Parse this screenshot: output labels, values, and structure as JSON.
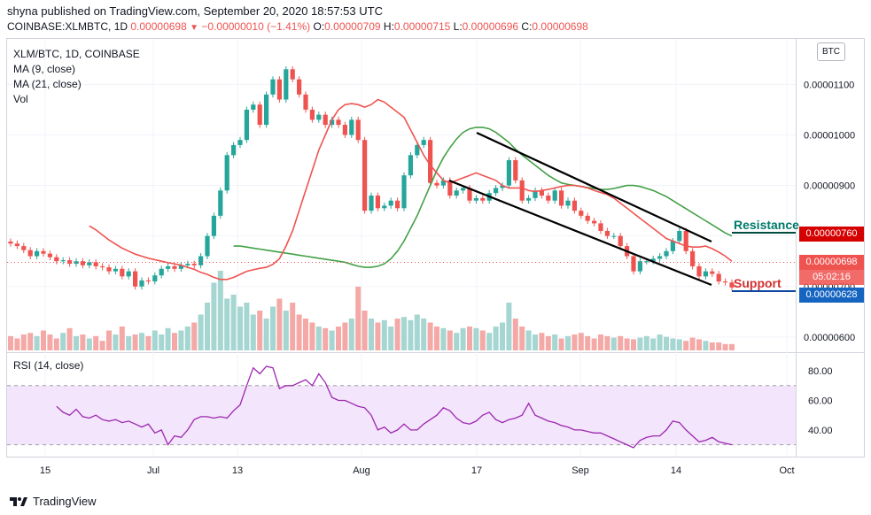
{
  "header": {
    "published": "shyna published on TradingView.com, September 20, 2020 18:57:53 UTC",
    "symbol": "COINBASE:XLMBTC, 1D",
    "last_price": "0.00000698",
    "change": "−0.00000010 (−1.41%)",
    "open_label": "O:",
    "open_value": "0.00000709",
    "high_label": "H:",
    "high_value": "0.00000715",
    "low_label": "L:",
    "low_value": "0.00000696",
    "close_label": "C:",
    "close_value": "0.00000698"
  },
  "legend": {
    "title": "XLM/BTC, 1D, COINBASE",
    "ma9": "MA (9, close)",
    "ma21": "MA (21, close)",
    "vol": "Vol",
    "rsi": "RSI (14, close)"
  },
  "currency_badge": "BTC",
  "price_labels": {
    "resistance_value": "0.00000760",
    "last_value": "0.00000698",
    "countdown": "05:02:16",
    "support_value": "0.00000628"
  },
  "annotations": {
    "resistance": "Resistance",
    "support": "Support"
  },
  "footer": {
    "brand": "TradingView"
  },
  "colors": {
    "up": "#26a69a",
    "down": "#ef5350",
    "ma9": "#ef5350",
    "ma21": "#43a047",
    "rsi": "#9c27b0",
    "rsi_band": "#f3e5fb",
    "resistance_label": "#d50000",
    "support_label": "#1565c0",
    "annotation_resistance": "#00796b",
    "annotation_support": "#d32f2f"
  },
  "chart_data": [
    {
      "type": "candlestick",
      "title": "XLM/BTC, 1D, COINBASE",
      "y_ticks": [
        "0.00001100",
        "0.00001000",
        "0.00000900",
        "0.00000800",
        "0.00000700",
        "0.00000600"
      ],
      "y_tick_values": [
        1.1e-05,
        1e-05,
        9e-06,
        8e-06,
        7e-06,
        6e-06
      ],
      "x_ticks": [
        "15",
        "Jul",
        "13",
        "Aug",
        "17",
        "Sep",
        "14",
        "Oct"
      ],
      "ylim": [
        5.7e-06,
        1.19e-05
      ],
      "date_range": [
        "2020-06-09",
        "2020-09-20"
      ],
      "close": [
        7.85,
        7.8,
        7.72,
        7.6,
        7.7,
        7.65,
        7.58,
        7.5,
        7.52,
        7.45,
        7.5,
        7.42,
        7.48,
        7.4,
        7.38,
        7.3,
        7.35,
        7.2,
        7.3,
        7.0,
        7.12,
        7.1,
        7.22,
        7.35,
        7.4,
        7.35,
        7.42,
        7.45,
        7.42,
        7.6,
        8.0,
        8.4,
        8.9,
        9.6,
        9.8,
        9.9,
        10.5,
        10.6,
        10.2,
        10.8,
        11.1,
        10.7,
        11.3,
        11.1,
        10.8,
        10.5,
        10.3,
        10.4,
        10.2,
        10.3,
        10.2,
        10.0,
        10.3,
        9.9,
        8.5,
        8.8,
        8.55,
        8.6,
        8.7,
        8.55,
        9.2,
        9.6,
        9.8,
        9.9,
        9.05,
        9.0,
        9.1,
        8.8,
        8.9,
        8.95,
        8.7,
        8.75,
        8.7,
        8.85,
        8.95,
        9.0,
        9.5,
        9.1,
        8.7,
        8.75,
        8.9,
        8.8,
        8.7,
        8.9,
        8.6,
        8.7,
        8.5,
        8.4,
        8.3,
        8.25,
        8.1,
        8.0,
        8.0,
        7.8,
        7.6,
        7.3,
        7.5,
        7.5,
        7.55,
        7.6,
        7.7,
        7.9,
        8.1,
        7.7,
        7.4,
        7.2,
        7.3,
        7.25,
        7.1,
        7.08,
        6.98
      ],
      "ma9": [
        8.2,
        8.12,
        8.02,
        7.92,
        7.84,
        7.76,
        7.7,
        7.64,
        7.6,
        7.56,
        7.53,
        7.5,
        7.47,
        7.45,
        7.42,
        7.38,
        7.34,
        7.28,
        7.24,
        7.18,
        7.14,
        7.14,
        7.18,
        7.24,
        7.3,
        7.33,
        7.36,
        7.38,
        7.44,
        7.55,
        7.8,
        8.1,
        8.5,
        8.9,
        9.3,
        9.7,
        10.0,
        10.3,
        10.5,
        10.6,
        10.62,
        10.6,
        10.55,
        10.6,
        10.7,
        10.65,
        10.55,
        10.45,
        10.35,
        10.1,
        9.85,
        9.6,
        9.4,
        9.25,
        9.1,
        9.05,
        9.1,
        9.15,
        9.2,
        9.25,
        9.2,
        9.15,
        9.1,
        9.0,
        8.95,
        8.95,
        8.95,
        8.9,
        8.88,
        8.9,
        8.92,
        8.95,
        8.98,
        9.0,
        9.0,
        8.98,
        8.95,
        8.9,
        8.86,
        8.82,
        8.75,
        8.65,
        8.55,
        8.45,
        8.35,
        8.25,
        8.15,
        8.05,
        7.95,
        7.9,
        7.85,
        7.8,
        7.78,
        7.78,
        7.8,
        7.75,
        7.68,
        7.6,
        7.5
      ],
      "ma21": [
        7.8,
        7.8,
        7.78,
        7.76,
        7.74,
        7.72,
        7.7,
        7.68,
        7.66,
        7.64,
        7.62,
        7.6,
        7.58,
        7.56,
        7.54,
        7.52,
        7.5,
        7.48,
        7.44,
        7.4,
        7.38,
        7.38,
        7.4,
        7.45,
        7.55,
        7.7,
        7.9,
        8.15,
        8.4,
        8.7,
        9.0,
        9.3,
        9.55,
        9.75,
        9.92,
        10.05,
        10.12,
        10.15,
        10.15,
        10.12,
        10.05,
        9.95,
        9.85,
        9.72,
        9.6,
        9.5,
        9.4,
        9.3,
        9.2,
        9.12,
        9.05,
        9.02,
        9.0,
        8.98,
        8.96,
        8.94,
        8.92,
        8.92,
        8.94,
        8.97,
        9.0,
        9.0,
        8.98,
        8.94,
        8.9,
        8.84,
        8.78,
        8.7,
        8.62,
        8.54,
        8.46,
        8.38,
        8.3,
        8.22,
        8.14,
        8.06,
        8.0
      ],
      "volume": [
        0.18,
        0.15,
        0.2,
        0.22,
        0.18,
        0.25,
        0.2,
        0.15,
        0.22,
        0.28,
        0.18,
        0.2,
        0.15,
        0.18,
        0.12,
        0.25,
        0.2,
        0.3,
        0.18,
        0.2,
        0.22,
        0.18,
        0.25,
        0.2,
        0.28,
        0.22,
        0.25,
        0.3,
        0.35,
        0.45,
        0.6,
        0.85,
        1.0,
        0.65,
        0.7,
        0.55,
        0.6,
        0.45,
        0.5,
        0.4,
        0.55,
        0.65,
        0.5,
        0.6,
        0.45,
        0.4,
        0.35,
        0.3,
        0.28,
        0.25,
        0.3,
        0.35,
        0.4,
        0.8,
        0.5,
        0.4,
        0.35,
        0.38,
        0.3,
        0.4,
        0.42,
        0.38,
        0.45,
        0.4,
        0.35,
        0.3,
        0.28,
        0.25,
        0.22,
        0.28,
        0.3,
        0.28,
        0.25,
        0.22,
        0.3,
        0.35,
        0.6,
        0.4,
        0.3,
        0.25,
        0.2,
        0.22,
        0.18,
        0.2,
        0.15,
        0.18,
        0.2,
        0.22,
        0.18,
        0.15,
        0.2,
        0.18,
        0.16,
        0.18,
        0.15,
        0.14,
        0.16,
        0.18,
        0.15,
        0.2,
        0.17,
        0.15,
        0.14,
        0.12,
        0.16,
        0.14,
        0.12,
        0.1,
        0.1,
        0.08,
        0.08
      ]
    },
    {
      "type": "line",
      "title": "RSI (14, close)",
      "y_ticks": [
        "80.00",
        "60.00",
        "40.00"
      ],
      "y_tick_values": [
        80,
        60,
        40
      ],
      "band": [
        30,
        70
      ],
      "ylim": [
        22,
        92
      ],
      "values": [
        56,
        52,
        50,
        54,
        49,
        48,
        50,
        47,
        46,
        47,
        45,
        46,
        44,
        42,
        44,
        38,
        40,
        30,
        36,
        35,
        40,
        47,
        49,
        49,
        48,
        49,
        48,
        53,
        57,
        70,
        82,
        78,
        83,
        82,
        68,
        70,
        70,
        72,
        74,
        70,
        78,
        72,
        62,
        60,
        60,
        58,
        56,
        55,
        50,
        40,
        42,
        38,
        40,
        44,
        40,
        40,
        44,
        47,
        50,
        55,
        53,
        48,
        45,
        44,
        46,
        50,
        52,
        47,
        45,
        47,
        48,
        50,
        58,
        50,
        48,
        46,
        45,
        43,
        42,
        40,
        40,
        39,
        38,
        38,
        36,
        34,
        32,
        30,
        28,
        33,
        35,
        36,
        36,
        40,
        46,
        45,
        40,
        36,
        32,
        33,
        35,
        32,
        31,
        30
      ]
    }
  ]
}
